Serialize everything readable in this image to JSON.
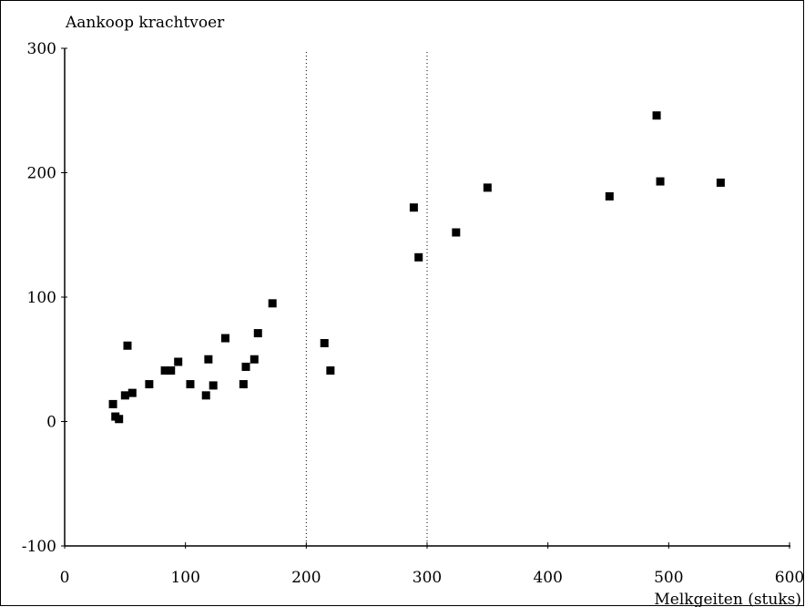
{
  "chart_data": {
    "type": "scatter",
    "title": "",
    "ylabel": "Aankoop krachtvoer",
    "xlabel": "Melkgeiten (stuks)",
    "xlim": [
      0,
      600
    ],
    "ylim": [
      -100,
      300
    ],
    "x_ticks": [
      0,
      100,
      200,
      300,
      400,
      500,
      600
    ],
    "x_tick_labels": [
      "0",
      "100",
      "200",
      "300",
      "400",
      "500",
      "600"
    ],
    "y_ticks": [
      -100,
      0,
      100,
      200,
      300
    ],
    "y_tick_labels": [
      "-100",
      "0",
      "100",
      "200",
      "300"
    ],
    "grid": false,
    "legend": "none",
    "marker_color": "#000000",
    "points": [
      {
        "x": 40,
        "y": 14
      },
      {
        "x": 42,
        "y": 4
      },
      {
        "x": 45,
        "y": 2
      },
      {
        "x": 50,
        "y": 21
      },
      {
        "x": 52,
        "y": 61
      },
      {
        "x": 56,
        "y": 23
      },
      {
        "x": 70,
        "y": 30
      },
      {
        "x": 83,
        "y": 41
      },
      {
        "x": 88,
        "y": 41
      },
      {
        "x": 94,
        "y": 48
      },
      {
        "x": 104,
        "y": 30
      },
      {
        "x": 117,
        "y": 21
      },
      {
        "x": 119,
        "y": 50
      },
      {
        "x": 123,
        "y": 29
      },
      {
        "x": 133,
        "y": 67
      },
      {
        "x": 148,
        "y": 30
      },
      {
        "x": 150,
        "y": 44
      },
      {
        "x": 157,
        "y": 50
      },
      {
        "x": 160,
        "y": 71
      },
      {
        "x": 172,
        "y": 95
      },
      {
        "x": 215,
        "y": 63
      },
      {
        "x": 220,
        "y": 41
      },
      {
        "x": 289,
        "y": 172
      },
      {
        "x": 293,
        "y": 132
      },
      {
        "x": 324,
        "y": 152
      },
      {
        "x": 350,
        "y": 188
      },
      {
        "x": 451,
        "y": 181
      },
      {
        "x": 490,
        "y": 246
      },
      {
        "x": 493,
        "y": 193
      },
      {
        "x": 543,
        "y": 192
      }
    ]
  }
}
